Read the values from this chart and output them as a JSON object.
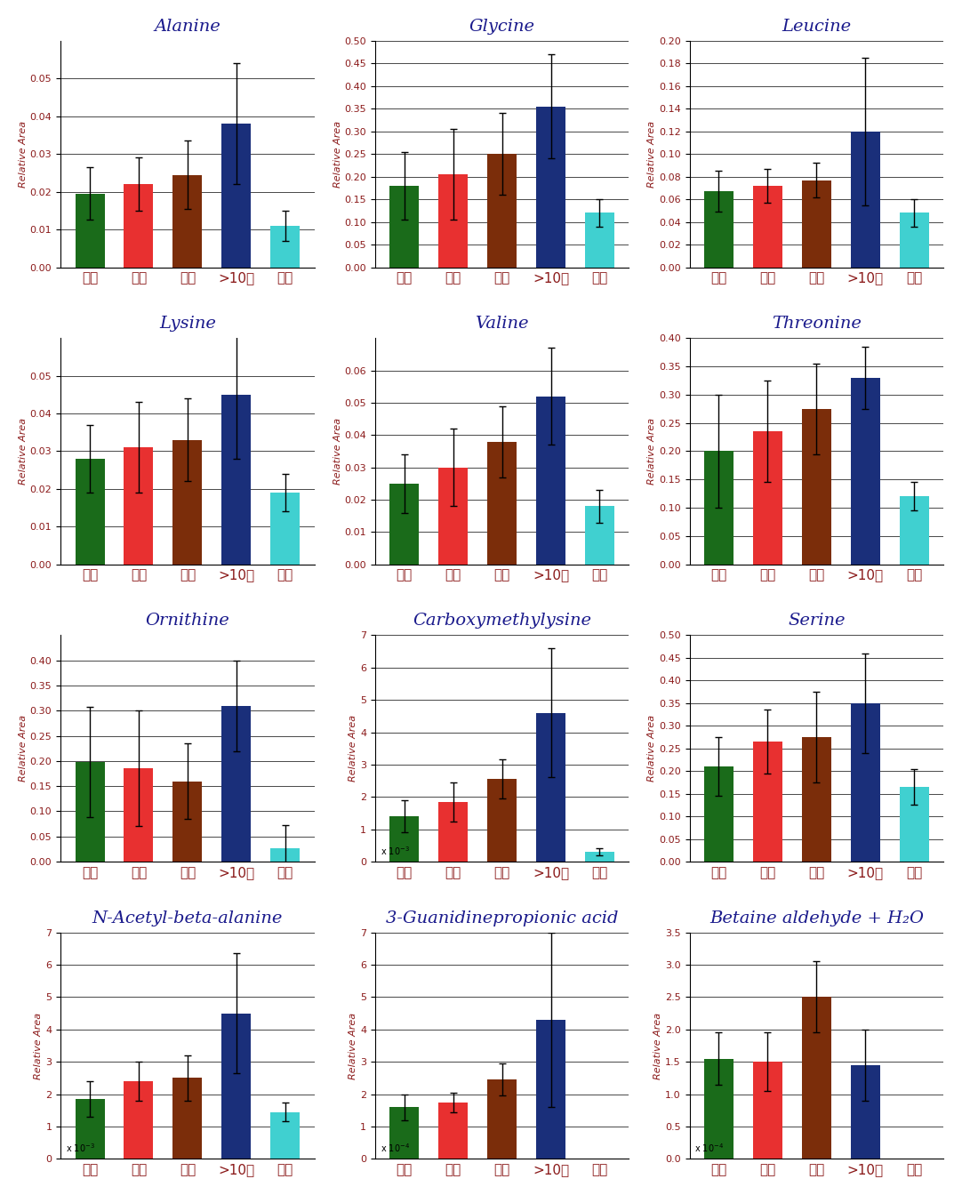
{
  "subplots": [
    {
      "title": "Alanine",
      "values": [
        0.0195,
        0.022,
        0.0245,
        0.038,
        0.011
      ],
      "errors": [
        0.007,
        0.007,
        0.009,
        0.016,
        0.004
      ],
      "ylim": [
        0,
        0.06
      ],
      "yticks": [
        0,
        0.01,
        0.02,
        0.03,
        0.04,
        0.05
      ],
      "scale": null,
      "scale_label": null
    },
    {
      "title": "Glycine",
      "values": [
        0.18,
        0.205,
        0.25,
        0.355,
        0.12
      ],
      "errors": [
        0.075,
        0.1,
        0.09,
        0.115,
        0.03
      ],
      "ylim": [
        0,
        0.5
      ],
      "yticks": [
        0,
        0.05,
        0.1,
        0.15,
        0.2,
        0.25,
        0.3,
        0.35,
        0.4,
        0.45,
        0.5
      ],
      "scale": null,
      "scale_label": null
    },
    {
      "title": "Leucine",
      "values": [
        0.067,
        0.072,
        0.077,
        0.12,
        0.048
      ],
      "errors": [
        0.018,
        0.015,
        0.015,
        0.065,
        0.012
      ],
      "ylim": [
        0,
        0.2
      ],
      "yticks": [
        0,
        0.02,
        0.04,
        0.06,
        0.08,
        0.1,
        0.12,
        0.14,
        0.16,
        0.18,
        0.2
      ],
      "scale": null,
      "scale_label": null
    },
    {
      "title": "Lysine",
      "values": [
        0.028,
        0.031,
        0.033,
        0.045,
        0.019
      ],
      "errors": [
        0.009,
        0.012,
        0.011,
        0.017,
        0.005
      ],
      "ylim": [
        0,
        0.06
      ],
      "yticks": [
        0,
        0.01,
        0.02,
        0.03,
        0.04,
        0.05
      ],
      "scale": null,
      "scale_label": null
    },
    {
      "title": "Valine",
      "values": [
        0.025,
        0.03,
        0.038,
        0.052,
        0.018
      ],
      "errors": [
        0.009,
        0.012,
        0.011,
        0.015,
        0.005
      ],
      "ylim": [
        0,
        0.07
      ],
      "yticks": [
        0,
        0.01,
        0.02,
        0.03,
        0.04,
        0.05,
        0.06
      ],
      "scale": null,
      "scale_label": null
    },
    {
      "title": "Threonine",
      "values": [
        0.2,
        0.235,
        0.275,
        0.33,
        0.12
      ],
      "errors": [
        0.1,
        0.09,
        0.08,
        0.055,
        0.025
      ],
      "ylim": [
        0,
        0.4
      ],
      "yticks": [
        0,
        0.05,
        0.1,
        0.15,
        0.2,
        0.25,
        0.3,
        0.35,
        0.4
      ],
      "scale": null,
      "scale_label": null
    },
    {
      "title": "Ornithine",
      "values": [
        0.198,
        0.185,
        0.16,
        0.31,
        0.027
      ],
      "errors": [
        0.11,
        0.115,
        0.075,
        0.09,
        0.045
      ],
      "ylim": [
        0,
        0.45
      ],
      "yticks": [
        0,
        0.05,
        0.1,
        0.15,
        0.2,
        0.25,
        0.3,
        0.35,
        0.4
      ],
      "scale": null,
      "scale_label": null
    },
    {
      "title": "Carboxymethylysine",
      "values": [
        1.4,
        1.85,
        2.55,
        4.6,
        0.3
      ],
      "errors": [
        0.5,
        0.6,
        0.6,
        2.0,
        0.12
      ],
      "ylim": [
        0,
        7
      ],
      "yticks": [
        0,
        1,
        2,
        3,
        4,
        5,
        6,
        7
      ],
      "scale": 0.001,
      "scale_label": "x 10$^{-3}$"
    },
    {
      "title": "Serine",
      "values": [
        0.21,
        0.265,
        0.275,
        0.35,
        0.165
      ],
      "errors": [
        0.065,
        0.07,
        0.1,
        0.11,
        0.04
      ],
      "ylim": [
        0,
        0.5
      ],
      "yticks": [
        0,
        0.05,
        0.1,
        0.15,
        0.2,
        0.25,
        0.3,
        0.35,
        0.4,
        0.45,
        0.5
      ],
      "scale": null,
      "scale_label": null
    },
    {
      "title": "N-Acetyl-beta-alanine",
      "values": [
        1.85,
        2.4,
        2.5,
        4.5,
        1.45
      ],
      "errors": [
        0.55,
        0.6,
        0.7,
        1.85,
        0.3
      ],
      "ylim": [
        0,
        7
      ],
      "yticks": [
        0,
        1,
        2,
        3,
        4,
        5,
        6,
        7
      ],
      "scale": 0.001,
      "scale_label": "x 10$^{-3}$"
    },
    {
      "title": "3-Guanidinepropionic acid",
      "values": [
        1.6,
        1.75,
        2.45,
        4.3,
        null
      ],
      "errors": [
        0.4,
        0.3,
        0.5,
        2.7,
        null
      ],
      "ylim": [
        0,
        7
      ],
      "yticks": [
        0,
        1,
        2,
        3,
        4,
        5,
        6,
        7
      ],
      "scale": 0.0001,
      "scale_label": "x 10$^{-4}$"
    },
    {
      "title": "Betaine aldehyde + H₂O",
      "values": [
        1.55,
        1.5,
        2.5,
        1.45,
        null
      ],
      "errors": [
        0.4,
        0.45,
        0.55,
        0.55,
        null
      ],
      "ylim": [
        0,
        3.5
      ],
      "yticks": [
        0,
        0.5,
        1.0,
        1.5,
        2.0,
        2.5,
        3.0,
        3.5
      ],
      "scale": 0.0001,
      "scale_label": "x 10$^{-4}$"
    }
  ],
  "bar_colors": [
    "#1a6b1a",
    "#e83030",
    "#7b2d0a",
    "#1a2f7a",
    "#40d0d0"
  ],
  "categories": [
    "단기",
    "중기",
    "장기",
    ">10년",
    "미소"
  ],
  "ylabel": "Relative Area",
  "title_color": "#1a1a8c",
  "label_color": "#8b1a1a",
  "axis_label_color": "#8b1a1a",
  "title_fontsize": 14,
  "label_fontsize": 11,
  "ylabel_fontsize": 8
}
